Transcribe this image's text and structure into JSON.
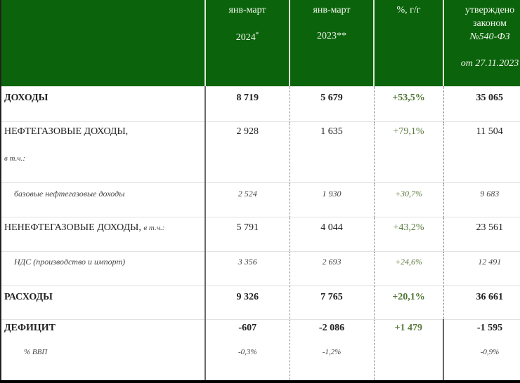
{
  "colors": {
    "header_bg": "#0b640b",
    "header_text": "#f2f6ee",
    "pct_text": "#5b7b3e"
  },
  "header": {
    "col0": "",
    "col1": {
      "line1": "янв-март",
      "line2": "2024",
      "mark": "*"
    },
    "col2": {
      "line1": "янв-март",
      "line2": "2023**"
    },
    "col3": {
      "line1": "%, г/г"
    },
    "col4": {
      "line1": "утверждено",
      "line2": "законом",
      "line3": "№540-ФЗ",
      "line4": "от 27.11.2023"
    }
  },
  "rows": [
    {
      "label": "ДОХОДЫ",
      "v2024": "8 719",
      "v2023": "5 679",
      "pct": "+53,5%",
      "law": "35 065"
    },
    {
      "label": "НЕФТЕГАЗОВЫЕ ДОХОДЫ,",
      "note": "в т.ч.:",
      "v2024": "2 928",
      "v2023": "1 635",
      "pct": "+79,1%",
      "law": "11 504"
    },
    {
      "label": "базовые нефтегазовые доходы",
      "v2024": "2 524",
      "v2023": "1 930",
      "pct": "+30,7%",
      "law": "9 683"
    },
    {
      "label": "НЕНЕФТЕГАЗОВЫЕ ДОХОДЫ,",
      "note": "в т.ч.:",
      "v2024": "5 791",
      "v2023": "4 044",
      "pct": "+43,2%",
      "law": "23 561"
    },
    {
      "label": "НДС (производство и импорт)",
      "v2024": "3 356",
      "v2023": "2 693",
      "pct": "+24,6%",
      "law": "12 491"
    },
    {
      "label": "РАСХОДЫ",
      "v2024": "9 326",
      "v2023": "7 765",
      "pct": "+20,1%",
      "law": "36 661"
    },
    {
      "label": "ДЕФИЦИТ",
      "v2024": "-607",
      "v2023": "-2 086",
      "pct": "+1 479",
      "law": "-1 595",
      "sub": {
        "label": "% ВВП",
        "v2024": "-0,3%",
        "v2023": "-1,2%",
        "pct": "",
        "law": "-0,9%"
      }
    }
  ]
}
